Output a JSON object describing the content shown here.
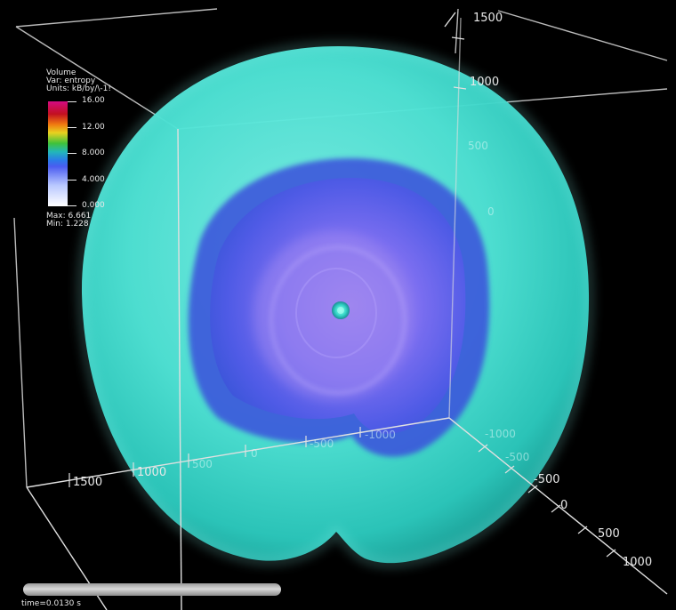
{
  "legend": {
    "line1": "Volume",
    "line2": "Var: entropy",
    "line3": "Units: kB/by/\\-1!",
    "ticks": [
      "16.00",
      "12.00",
      "8.000",
      "4.000",
      "0.000"
    ],
    "max_text": "Max: 6.661",
    "min_text": "Min: 1.228"
  },
  "axes": {
    "vertical_ticks": [
      "1500",
      "1000",
      "500",
      "0"
    ],
    "bottom_left_ticks": [
      "1500",
      "1000",
      "500",
      "0",
      "-500",
      "-1000"
    ],
    "right_ticks": [
      "-1000",
      "-500",
      "0",
      "500",
      "1000"
    ]
  },
  "time": {
    "label": "time=0.0130 s"
  },
  "colors": {
    "background": "#000000",
    "outer_shell": "#52e6d6",
    "inner_region": "#5b5ae8",
    "core": "#2fd0c0"
  }
}
